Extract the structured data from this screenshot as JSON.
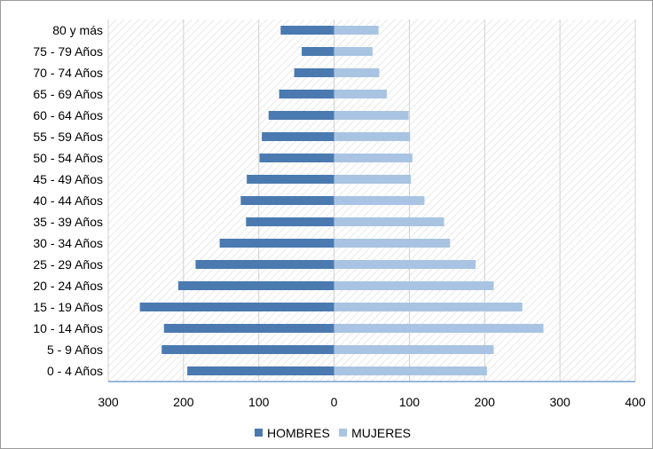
{
  "chart_data": {
    "type": "bar",
    "orientation": "horizontal",
    "layout": "population-pyramid",
    "title": "",
    "xlabel": "",
    "ylabel": "",
    "xlim": [
      -300,
      400
    ],
    "x_ticks": [
      -300,
      -200,
      -100,
      0,
      100,
      200,
      300,
      400
    ],
    "x_tick_labels": [
      "300",
      "200",
      "100",
      "0",
      "100",
      "200",
      "300",
      "400"
    ],
    "grid": true,
    "legend_position": "bottom",
    "categories": [
      "0 - 4 Años",
      "5 - 9 Años",
      "10 - 14 Años",
      "15 - 19 Años",
      "20 - 24 Años",
      "25 - 29 Años",
      "30 - 34 Años",
      "35 - 39 Años",
      "40 - 44 Años",
      "45 - 49 Años",
      "50 - 54 Años",
      "55 - 59 Años",
      "60 - 64 Años",
      "65 - 69 Años",
      "70 - 74 Años",
      "75 - 79 Años",
      "80 y más"
    ],
    "series": [
      {
        "name": "HOMBRES",
        "color": "#4a7ab0",
        "side": "left",
        "values": [
          195,
          229,
          226,
          258,
          207,
          184,
          152,
          117,
          124,
          116,
          99,
          96,
          87,
          73,
          53,
          43,
          71
        ]
      },
      {
        "name": "MUJERES",
        "color": "#a9c4e2",
        "side": "right",
        "values": [
          203,
          212,
          278,
          250,
          212,
          188,
          154,
          146,
          120,
          102,
          104,
          101,
          99,
          70,
          60,
          51,
          59
        ]
      }
    ]
  }
}
